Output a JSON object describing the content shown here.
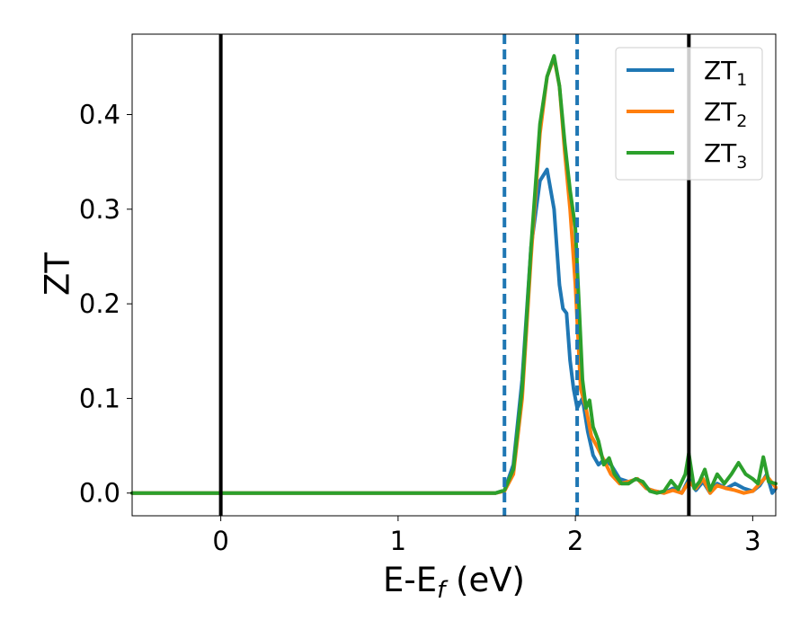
{
  "chart_data": {
    "type": "line",
    "xlabel": "E-E_f (eV)",
    "xlabel_main": "E-E",
    "xlabel_sub": "f",
    "xlabel_tail": " (eV)",
    "ylabel": "ZT",
    "xlim": [
      -0.5,
      3.13
    ],
    "ylim": [
      -0.024,
      0.485
    ],
    "xticks": [
      0,
      1,
      2,
      3
    ],
    "xtick_labels": [
      "0",
      "1",
      "2",
      "3"
    ],
    "yticks": [
      0.0,
      0.1,
      0.2,
      0.3,
      0.4
    ],
    "ytick_labels": [
      "0.0",
      "0.1",
      "0.2",
      "0.3",
      "0.4"
    ],
    "grid": false,
    "legend_position": "top-right",
    "vlines": [
      {
        "x": 0.0,
        "style": "solid",
        "color": "#000000"
      },
      {
        "x": 2.64,
        "style": "solid",
        "color": "#000000"
      },
      {
        "x": 1.6,
        "style": "dashed",
        "color": "#1f77b4"
      },
      {
        "x": 2.01,
        "style": "dashed",
        "color": "#1f77b4"
      }
    ],
    "series": [
      {
        "name": "ZT_1",
        "label_main": "ZT",
        "label_sub": "1",
        "color": "#1f77b4",
        "x": [
          -0.5,
          1.55,
          1.6,
          1.65,
          1.7,
          1.75,
          1.8,
          1.84,
          1.88,
          1.91,
          1.93,
          1.95,
          1.97,
          1.99,
          2.01,
          2.04,
          2.07,
          2.1,
          2.13,
          2.16,
          2.2,
          2.25,
          2.3,
          2.35,
          2.4,
          2.45,
          2.5,
          2.55,
          2.6,
          2.64,
          2.68,
          2.72,
          2.76,
          2.8,
          2.85,
          2.9,
          2.95,
          3.0,
          3.04,
          3.08,
          3.11,
          3.13
        ],
        "y": [
          0.0,
          0.0,
          0.003,
          0.03,
          0.12,
          0.26,
          0.33,
          0.342,
          0.3,
          0.22,
          0.195,
          0.19,
          0.14,
          0.11,
          0.09,
          0.1,
          0.065,
          0.04,
          0.03,
          0.035,
          0.03,
          0.015,
          0.012,
          0.015,
          0.005,
          0.002,
          0.0,
          0.005,
          0.0,
          0.015,
          0.003,
          0.012,
          0.0,
          0.01,
          0.005,
          0.01,
          0.005,
          0.002,
          0.008,
          0.02,
          0.0,
          0.005
        ]
      },
      {
        "name": "ZT_2",
        "label_main": "ZT",
        "label_sub": "2",
        "color": "#ff7f0e",
        "x": [
          -0.5,
          1.55,
          1.6,
          1.65,
          1.7,
          1.75,
          1.8,
          1.84,
          1.88,
          1.91,
          1.94,
          1.97,
          2.0,
          2.03,
          2.06,
          2.09,
          2.12,
          2.16,
          2.2,
          2.25,
          2.3,
          2.35,
          2.4,
          2.45,
          2.5,
          2.55,
          2.6,
          2.64,
          2.68,
          2.72,
          2.76,
          2.8,
          2.85,
          2.9,
          2.95,
          3.0,
          3.04,
          3.08,
          3.13
        ],
        "y": [
          0.0,
          0.0,
          0.002,
          0.02,
          0.1,
          0.25,
          0.38,
          0.44,
          0.46,
          0.43,
          0.36,
          0.3,
          0.22,
          0.11,
          0.09,
          0.06,
          0.05,
          0.035,
          0.02,
          0.01,
          0.012,
          0.015,
          0.005,
          0.002,
          0.0,
          0.003,
          0.0,
          0.012,
          0.005,
          0.015,
          0.0,
          0.008,
          0.005,
          0.003,
          0.0,
          0.002,
          0.01,
          0.018,
          0.006
        ]
      },
      {
        "name": "ZT_3",
        "label_main": "ZT",
        "label_sub": "3",
        "color": "#2ca02c",
        "x": [
          -0.5,
          1.55,
          1.6,
          1.65,
          1.7,
          1.75,
          1.8,
          1.84,
          1.88,
          1.91,
          1.94,
          1.97,
          2.0,
          2.02,
          2.04,
          2.06,
          2.08,
          2.1,
          2.13,
          2.16,
          2.19,
          2.22,
          2.26,
          2.3,
          2.34,
          2.38,
          2.42,
          2.46,
          2.5,
          2.54,
          2.58,
          2.62,
          2.64,
          2.67,
          2.7,
          2.73,
          2.76,
          2.8,
          2.84,
          2.88,
          2.92,
          2.96,
          3.0,
          3.03,
          3.06,
          3.09,
          3.13
        ],
        "y": [
          0.0,
          0.0,
          0.003,
          0.025,
          0.11,
          0.26,
          0.39,
          0.44,
          0.462,
          0.43,
          0.37,
          0.32,
          0.28,
          0.2,
          0.12,
          0.09,
          0.098,
          0.07,
          0.055,
          0.03,
          0.037,
          0.02,
          0.01,
          0.01,
          0.015,
          0.012,
          0.002,
          0.0,
          0.002,
          0.013,
          0.004,
          0.02,
          0.042,
          0.005,
          0.012,
          0.025,
          0.003,
          0.02,
          0.01,
          0.02,
          0.032,
          0.02,
          0.015,
          0.01,
          0.038,
          0.012,
          0.01
        ]
      }
    ]
  }
}
